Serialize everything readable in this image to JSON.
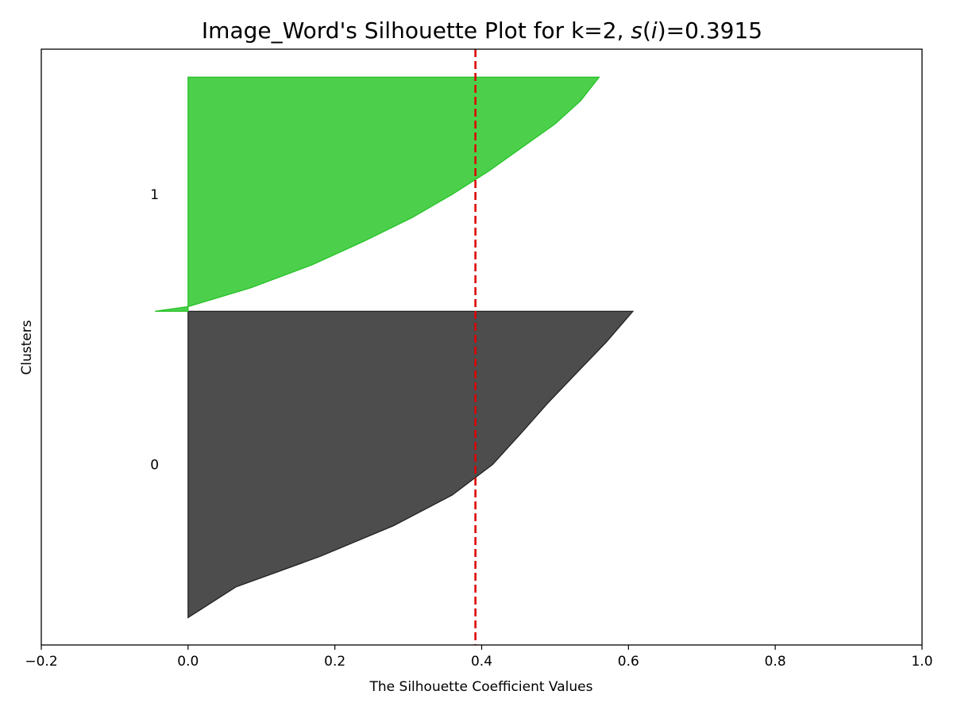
{
  "chart_data": {
    "type": "area",
    "title": {
      "prefix": "Image_Word's Silhouette Plot for k=2, ",
      "s": "s",
      "open": "(",
      "i": "i",
      "close": ")",
      "suffix": "=0.3915"
    },
    "xlabel": "The Silhouette Coefficient Values",
    "ylabel": "Clusters",
    "xlim": [
      -0.2,
      1.0
    ],
    "x_ticks": [
      -0.2,
      0.0,
      0.2,
      0.4,
      0.6,
      0.8,
      1.0
    ],
    "x_tick_labels": [
      "−0.2",
      "0.0",
      "0.2",
      "0.4",
      "0.6",
      "0.8",
      "1.0"
    ],
    "ylim": [
      0,
      1.0
    ],
    "grid": false,
    "legend": "none",
    "average_silhouette": 0.3915,
    "average_line_color": "#dd0000",
    "clusters": [
      {
        "label": "0",
        "color": "#4d4d4d",
        "edge_color": "#222222",
        "y_range": [
          0.046,
          0.56
        ],
        "profile": [
          [
            0.0,
            0.0
          ],
          [
            0.1,
            0.065
          ],
          [
            0.2,
            0.18
          ],
          [
            0.3,
            0.28
          ],
          [
            0.4,
            0.36
          ],
          [
            0.5,
            0.415
          ],
          [
            0.6,
            0.453
          ],
          [
            0.7,
            0.49
          ],
          [
            0.8,
            0.53
          ],
          [
            0.9,
            0.57
          ],
          [
            1.0,
            0.606
          ]
        ]
      },
      {
        "label": "1",
        "color": "#4cd04c",
        "edge_color": "#28c228",
        "y_range": [
          0.56,
          0.953
        ],
        "profile": [
          [
            0.0,
            -0.045
          ],
          [
            0.02,
            0.0
          ],
          [
            0.1,
            0.085
          ],
          [
            0.2,
            0.17
          ],
          [
            0.3,
            0.24
          ],
          [
            0.4,
            0.305
          ],
          [
            0.5,
            0.36
          ],
          [
            0.6,
            0.41
          ],
          [
            0.7,
            0.455
          ],
          [
            0.8,
            0.5
          ],
          [
            0.9,
            0.535
          ],
          [
            1.0,
            0.56
          ]
        ]
      }
    ]
  }
}
